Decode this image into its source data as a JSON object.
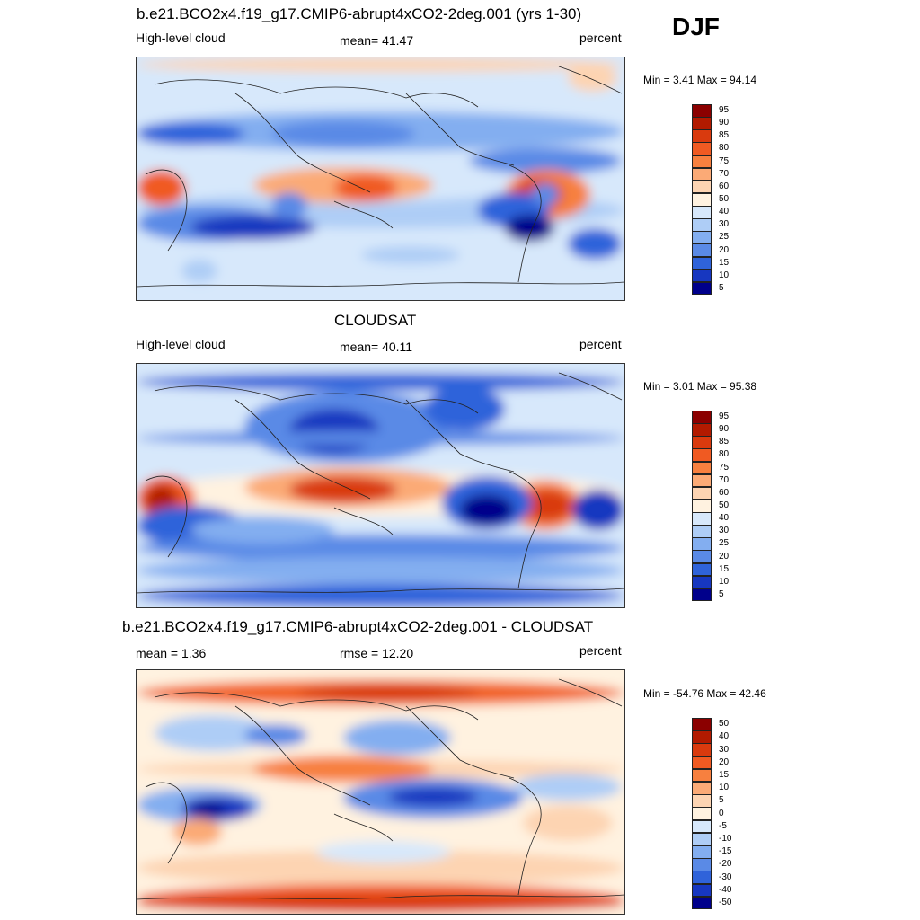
{
  "season": "DJF",
  "panels": [
    {
      "id": "model",
      "title": "b.e21.BCO2x4.f19_g17.CMIP6-abrupt4xCO2-2deg.001 (yrs 1-30)",
      "left_label": "High-level cloud",
      "center_label": "mean=  41.47",
      "right_label": "percent",
      "minmax": "Min =   3.41 Max =  94.14"
    },
    {
      "id": "obs",
      "title": "CLOUDSAT",
      "left_label": "High-level cloud",
      "center_label": "mean=  40.11",
      "right_label": "percent",
      "minmax": "Min =   3.01 Max =  95.38"
    },
    {
      "id": "diff",
      "title": "b.e21.BCO2x4.f19_g17.CMIP6-abrupt4xCO2-2deg.001 - CLOUDSAT",
      "left_label": "mean =   1.36",
      "center_label": "rmse =  12.20",
      "right_label": "percent",
      "minmax": "Min = -54.76 Max =  42.46"
    }
  ],
  "chart_data": [
    {
      "type": "heatmap",
      "title": "b.e21.BCO2x4.f19_g17.CMIP6-abrupt4xCO2-2deg.001 (yrs 1-30)",
      "variable": "High-level cloud",
      "units": "percent",
      "mean": 41.47,
      "min": 3.41,
      "max": 94.14,
      "colorbar_levels": [
        "95",
        "90",
        "85",
        "80",
        "75",
        "70",
        "60",
        "50",
        "40",
        "30",
        "25",
        "20",
        "15",
        "10",
        "5"
      ],
      "colorbar_colors": [
        "#8b0000",
        "#b21a00",
        "#d93a0e",
        "#f05a22",
        "#f7803f",
        "#fbaa76",
        "#fdd4b2",
        "#fff2e0",
        "#d7e8fb",
        "#aecdf6",
        "#83aef0",
        "#5a8ae6",
        "#2f63da",
        "#1737c0",
        "#00008b"
      ]
    },
    {
      "type": "heatmap",
      "title": "CLOUDSAT",
      "variable": "High-level cloud",
      "units": "percent",
      "mean": 40.11,
      "min": 3.01,
      "max": 95.38,
      "colorbar_levels": [
        "95",
        "90",
        "85",
        "80",
        "75",
        "70",
        "60",
        "50",
        "40",
        "30",
        "25",
        "20",
        "15",
        "10",
        "5"
      ],
      "colorbar_colors": [
        "#8b0000",
        "#b21a00",
        "#d93a0e",
        "#f05a22",
        "#f7803f",
        "#fbaa76",
        "#fdd4b2",
        "#fff2e0",
        "#d7e8fb",
        "#aecdf6",
        "#83aef0",
        "#5a8ae6",
        "#2f63da",
        "#1737c0",
        "#00008b"
      ]
    },
    {
      "type": "heatmap",
      "title": "b.e21.BCO2x4.f19_g17.CMIP6-abrupt4xCO2-2deg.001 - CLOUDSAT",
      "variable": "High-level cloud difference",
      "units": "percent",
      "mean": 1.36,
      "rmse": 12.2,
      "min": -54.76,
      "max": 42.46,
      "colorbar_levels": [
        "50",
        "40",
        "30",
        "20",
        "15",
        "10",
        "5",
        "0",
        "-5",
        "-10",
        "-15",
        "-20",
        "-30",
        "-40",
        "-50"
      ],
      "colorbar_colors": [
        "#8b0000",
        "#b21a00",
        "#d93a0e",
        "#f05a22",
        "#f7803f",
        "#fbaa76",
        "#fdd4b2",
        "#fff2e0",
        "#d7e8fb",
        "#aecdf6",
        "#83aef0",
        "#5a8ae6",
        "#2f63da",
        "#1737c0",
        "#00008b"
      ]
    }
  ]
}
